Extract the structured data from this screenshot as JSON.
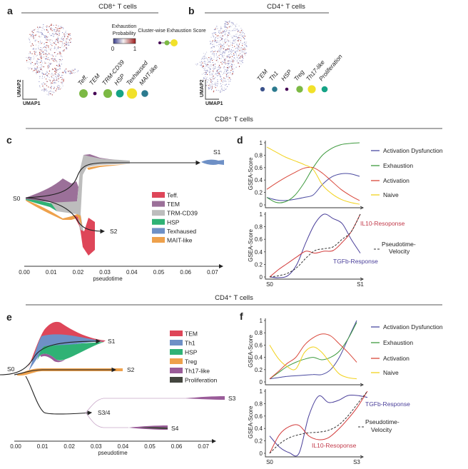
{
  "figure": {
    "panel_labels": [
      "a",
      "b",
      "c",
      "d",
      "e",
      "f"
    ],
    "headers": {
      "a": "CD8⁺ T cells",
      "b": "CD4⁺ T cells",
      "c_section": "CD8⁺ T cells",
      "e_section": "CD4⁺ T cells"
    }
  },
  "panel_a": {
    "umap_x": "UMAP1",
    "umap_y": "UMAP2",
    "colorbar": {
      "title_line1": "Exhaustion",
      "title_line2": "Probability",
      "min": "0",
      "max": "1",
      "colors": [
        "#3b3f8f",
        "#f4f0f0",
        "#9e1a1a"
      ]
    },
    "score_legend_title": "Cluster-wise Exhaustion Score",
    "clusters": [
      {
        "label": "Teff.",
        "color": "#7cb944",
        "score": 0.7
      },
      {
        "label": "TEM",
        "color": "#440154",
        "score": 0.1
      },
      {
        "label": "TRM-CD39",
        "color": "#7cb944",
        "score": 0.72
      },
      {
        "label": "HSP",
        "color": "#16a386",
        "score": 0.6
      },
      {
        "label": "Texhaused",
        "color": "#f1e12a",
        "score": 0.9
      },
      {
        "label": "MAIT-like",
        "color": "#2b7a8e",
        "score": 0.5
      }
    ]
  },
  "panel_b": {
    "umap_x": "UMAP1",
    "umap_y": "UMAP2",
    "clusters": [
      {
        "label": "TEM",
        "color": "#3b528b",
        "score": 0.3
      },
      {
        "label": "Th1",
        "color": "#2b7a8e",
        "score": 0.45
      },
      {
        "label": "HSP",
        "color": "#440154",
        "score": 0.1
      },
      {
        "label": "Treg",
        "color": "#7cb944",
        "score": 0.65
      },
      {
        "label": "Th17-like",
        "color": "#f1e12a",
        "score": 0.85
      },
      {
        "label": "Proliferation",
        "color": "#16a386",
        "score": 0.55
      }
    ]
  },
  "chart_data": [
    {
      "panel": "c",
      "type": "area",
      "xlabel": "pseudotime",
      "xticks": [
        "0.00",
        "0.01",
        "0.02",
        "0.03",
        "0.04",
        "0.05",
        "0.06",
        "0.07"
      ],
      "xlim": [
        0,
        0.075
      ],
      "branches": [
        "S0",
        "S1",
        "S2"
      ],
      "legend": [
        {
          "name": "Teff.",
          "color": "#de4659"
        },
        {
          "name": "TEM",
          "color": "#9b7099"
        },
        {
          "name": "TRM-CD39",
          "color": "#bdbdbd"
        },
        {
          "name": "HSP",
          "color": "#2fb275"
        },
        {
          "name": "Texhaused",
          "color": "#6e90c6"
        },
        {
          "name": "MAIT-like",
          "color": "#eea14c"
        }
      ]
    },
    {
      "panel": "d-top",
      "type": "line",
      "ylabel": "GSEA-Score",
      "yticks": [
        "0",
        "0.2",
        "0.4",
        "0.6",
        "0.8",
        "1"
      ],
      "ylim": [
        0,
        1
      ],
      "series": [
        {
          "name": "Activation Dysfunction",
          "color": "#4a4aa0",
          "values": [
            0.12,
            0.08,
            0.07,
            0.09,
            0.12,
            0.16,
            0.33,
            0.45,
            0.5,
            0.5,
            0.46
          ]
        },
        {
          "name": "Exhaustion",
          "color": "#3e9a3e",
          "values": [
            0.12,
            0.04,
            0.05,
            0.15,
            0.35,
            0.6,
            0.8,
            0.91,
            0.97,
            0.99,
            1.0
          ]
        },
        {
          "name": "Activation",
          "color": "#d9473a",
          "values": [
            0.25,
            0.35,
            0.44,
            0.52,
            0.59,
            0.6,
            0.51,
            0.38,
            0.25,
            0.15,
            0.07
          ]
        },
        {
          "name": "Naive",
          "color": "#f2d21c",
          "values": [
            0.93,
            0.85,
            0.77,
            0.71,
            0.65,
            0.57,
            0.32,
            0.18,
            0.09,
            0.04,
            0.01
          ]
        }
      ]
    },
    {
      "panel": "d-bottom",
      "type": "line",
      "ylabel": "GSEA-Score",
      "yticks": [
        "0",
        "0.2",
        "0.4",
        "0.6",
        "0.8",
        "1"
      ],
      "ylim": [
        0,
        1
      ],
      "x_start": "S0",
      "x_end": "S1",
      "series": [
        {
          "name": "TGFb-Response",
          "color": "#4a3f9a",
          "values": [
            0.0,
            -0.01,
            0.02,
            0.2,
            0.55,
            0.85,
            1.0,
            0.93,
            0.85,
            0.6,
            0.38
          ]
        },
        {
          "name": "IL10-Resoponse",
          "color": "#d23a3a",
          "values": [
            0.0,
            0.12,
            0.22,
            0.32,
            0.41,
            0.38,
            0.41,
            0.42,
            0.55,
            0.72,
            1.0
          ]
        },
        {
          "name": "Pseudotime-Velocity",
          "color": "#333333",
          "dashed": true,
          "values": [
            0.0,
            0.02,
            0.06,
            0.15,
            0.3,
            0.42,
            0.45,
            0.48,
            0.6,
            0.72,
            1.0
          ]
        }
      ],
      "labels": {
        "il10": "IL10-Resoponse",
        "velocity_1": "Pseudotime-",
        "velocity_2": "Velocity",
        "tgfb": "TGFb-Response"
      }
    },
    {
      "panel": "e",
      "type": "area",
      "xlabel": "pseudotime",
      "xticks": [
        "0.00",
        "0.01",
        "0.02",
        "0.03",
        "0.04",
        "0.05",
        "0.06",
        "0.07"
      ],
      "xlim": [
        0,
        0.075
      ],
      "branches": [
        "S0",
        "S1",
        "S2",
        "S3/4",
        "S3",
        "S4"
      ],
      "legend": [
        {
          "name": "TEM",
          "color": "#de4659"
        },
        {
          "name": "Th1",
          "color": "#6e90c6"
        },
        {
          "name": "HSP",
          "color": "#2fb275"
        },
        {
          "name": "Treg",
          "color": "#eea14c"
        },
        {
          "name": "Th17-like",
          "color": "#9a5c99"
        },
        {
          "name": "Proliferation",
          "color": "#44463f"
        }
      ]
    },
    {
      "panel": "f-top",
      "type": "line",
      "ylabel": "GSEA-Score",
      "yticks": [
        "0",
        "0.2",
        "0.4",
        "0.6",
        "0.8",
        "1"
      ],
      "ylim": [
        0,
        1
      ],
      "series": [
        {
          "name": "Activation Dysfunction",
          "color": "#4a4aa0",
          "values": [
            0.05,
            0.07,
            0.09,
            0.1,
            0.11,
            0.12,
            0.12,
            0.2,
            0.4,
            0.7,
            1.0
          ]
        },
        {
          "name": "Exhaustion",
          "color": "#3e9a3e",
          "values": [
            0.05,
            0.15,
            0.25,
            0.32,
            0.37,
            0.4,
            0.36,
            0.4,
            0.5,
            0.7,
            0.97
          ]
        },
        {
          "name": "Activation",
          "color": "#d9473a",
          "values": [
            0.05,
            0.17,
            0.3,
            0.4,
            0.6,
            0.72,
            0.78,
            0.75,
            0.62,
            0.48,
            0.32
          ]
        },
        {
          "name": "Naive",
          "color": "#f2d21c",
          "values": [
            0.6,
            0.38,
            0.25,
            0.21,
            0.48,
            0.57,
            0.48,
            0.3,
            0.13,
            0.07,
            0.05
          ]
        }
      ]
    },
    {
      "panel": "f-bottom",
      "type": "line",
      "ylabel": "GSEA-Score",
      "yticks": [
        "0",
        "0.2",
        "0.4",
        "0.6",
        "0.8",
        "1"
      ],
      "ylim": [
        0,
        1
      ],
      "x_start": "S0",
      "x_end": "S3",
      "series": [
        {
          "name": "TGFb-Response",
          "color": "#4a3f9a",
          "values": [
            0.28,
            0.1,
            0.01,
            0.0,
            0.6,
            0.92,
            0.82,
            0.85,
            0.93,
            0.93,
            0.9
          ]
        },
        {
          "name": "IL10-Resoponse",
          "color": "#d23a3a",
          "values": [
            0.0,
            0.3,
            0.43,
            0.45,
            0.28,
            0.22,
            0.25,
            0.38,
            0.55,
            0.75,
            1.0
          ]
        },
        {
          "name": "Pseudotime-Velocity",
          "color": "#333333",
          "dashed": true,
          "values": [
            0.0,
            0.15,
            0.25,
            0.3,
            0.33,
            0.34,
            0.37,
            0.45,
            0.6,
            0.8,
            1.0
          ]
        }
      ],
      "labels": {
        "il10": "IL10-Resoponse",
        "velocity_1": "Pseudotime-",
        "velocity_2": "Velocity",
        "tgfb": "TGFb-Response"
      }
    }
  ]
}
